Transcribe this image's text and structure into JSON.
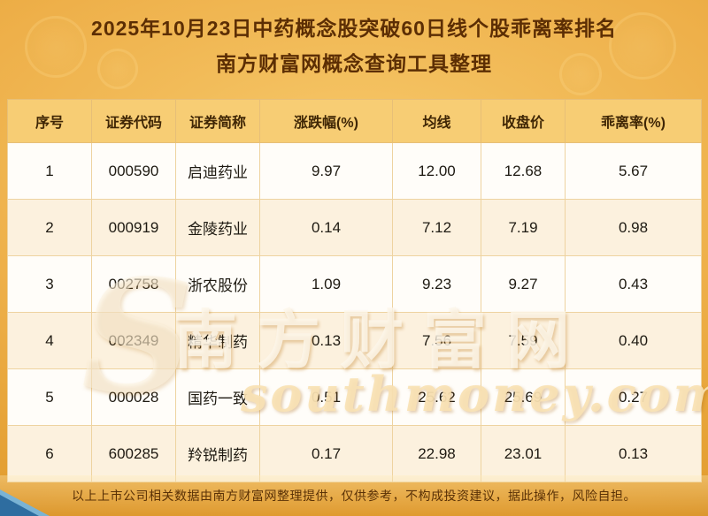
{
  "header": {
    "title_line1": "2025年10月23日中药概念股突破60日线个股乖离率排名",
    "title_line2": "南方财富网概念查询工具整理"
  },
  "chart_data": {
    "type": "table",
    "title": "2025年10月23日中药概念股突破60日线个股乖离率排名",
    "subtitle": "南方财富网概念查询工具整理",
    "columns": [
      "序号",
      "证券代码",
      "证券简称",
      "涨跌幅(%)",
      "均线",
      "收盘价",
      "乖离率(%)"
    ],
    "rows": [
      [
        "1",
        "000590",
        "启迪药业",
        "9.97",
        "12.00",
        "12.68",
        "5.67"
      ],
      [
        "2",
        "000919",
        "金陵药业",
        "0.14",
        "7.12",
        "7.19",
        "0.98"
      ],
      [
        "3",
        "002758",
        "浙农股份",
        "1.09",
        "9.23",
        "9.27",
        "0.43"
      ],
      [
        "4",
        "002349",
        "精华制药",
        "0.13",
        "7.56",
        "7.59",
        "0.40"
      ],
      [
        "5",
        "000028",
        "国药一致",
        "0.51",
        "25.62",
        "25.69",
        "0.27"
      ],
      [
        "6",
        "600285",
        "羚锐制药",
        "0.17",
        "22.98",
        "23.01",
        "0.13"
      ]
    ]
  },
  "watermark": {
    "logo": "S",
    "text_cn": "南方财富网",
    "text_en": "southmoney.com"
  },
  "footer": {
    "disclaimer": "以上上市公司相关数据由南方财富网整理提供，仅供参考，不构成投资建议，据此操作，风险自担。"
  },
  "colors": {
    "background_gold": "#eeb04a",
    "header_row_gold": "#f7cd74",
    "row_alt_cream": "#fcf1de",
    "title_brown": "#5c2e04",
    "corner_blue": "#2e6da0"
  }
}
